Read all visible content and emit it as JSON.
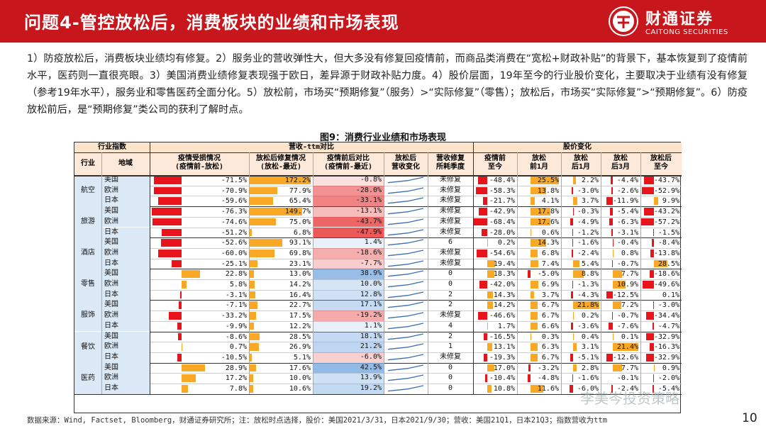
{
  "header": {
    "title": "问题4-管控放松后，消费板块的业绩和市场表现",
    "logo_cn": "财通证券",
    "logo_en": "CAITONG SECURITIES",
    "bg_color": "#c8161d"
  },
  "paragraph": "1）防疫放松后，消费板块业绩均有修复。2）服务业的营收弹性大，但大多没有修复回疫情前，而商品类消费在“宽松+财政补贴”的背景下，基本恢复到了疫情前水平，医药则一直很亮眼。3）美国消费业绩修复表现强于欧日，差异源于财政补贴力度。4）股价层面，19年至今的行业股价变化，主要取决于业绩有没有修复（参考19年水平），服务业和零售医药全面分化。5）放松前，市场买“预期修复”（服务）>“实际修复”（零售）；放松后，市场买“实际修复”>“预期修复”。6）防疫放松前后，是“预期修复”类公司的获利了解时点。",
  "figure_title": "图9：消费行业业绩和市场表现",
  "table": {
    "group_headers": [
      "行业指数",
      "营收-ttm对比",
      "股价变化"
    ],
    "headers": [
      "行业",
      "地域",
      "疫情受损情况\n(疫情前-放松)",
      "放松后修复情况\n(放松-最近)",
      "疫情前后对比\n(疫情前-最近)",
      "放松后\n营收变化",
      "营收修复\n所耗季度",
      "疫情前\n至今",
      "放松\n前1月",
      "放松\n后1月",
      "放松\n后3月",
      "放松后\n至今"
    ],
    "sectors": [
      {
        "name": "航空",
        "rows": [
          {
            "region": "美国",
            "c3": "-71.5%",
            "c4": "172.2%",
            "c5": "-0.8%",
            "trend": "up",
            "c7": "未修复",
            "c8": "-48.4%",
            "c9": "25.5%",
            "c10": "2.2%",
            "c11": "-4.4%",
            "c12": "-43.7%"
          },
          {
            "region": "欧洲",
            "c3": "-70.9%",
            "c4": "77.9%",
            "c5": "-28.0%",
            "trend": "up",
            "c7": "未修复",
            "c8": "-58.3%",
            "c9": "13.8%",
            "c10": "-3.0%",
            "c11": "-2.6%",
            "c12": "-52.9%"
          },
          {
            "region": "日本",
            "c3": "-59.6%",
            "c4": "65.4%",
            "c5": "-33.1%",
            "trend": "up",
            "c7": "未修复",
            "c8": "-21.7%",
            "c9": "4.1%",
            "c10": "3.7%",
            "c11": "-11.9%",
            "c12": "9.9%"
          }
        ]
      },
      {
        "name": "旅游",
        "rows": [
          {
            "region": "美国",
            "c3": "-76.3%",
            "c4": "149.7%",
            "c5": "-13.1%",
            "trend": "up",
            "c7": "未修复",
            "c8": "-42.9%",
            "c9": "17.8%",
            "c10": "-0.3%",
            "c11": "-5.4%",
            "c12": "-43.2%"
          },
          {
            "region": "欧洲",
            "c3": "-74.6%",
            "c4": "75.0%",
            "c5": "-43.7%",
            "trend": "up",
            "c7": "未修复",
            "c8": "-68.4%",
            "c9": "17.6%",
            "c10": "-4.9%",
            "c11": "-6.3%",
            "c12": "-57.2%"
          },
          {
            "region": "日本",
            "c3": "-51.2%",
            "c4": "6.8%",
            "c5": "-47.9%",
            "trend": "up",
            "c7": "未修复",
            "c8": "-28.0%",
            "c9": "0.6%",
            "c10": "-1.2%",
            "c11": "-3.1%",
            "c12": "-1.5%"
          }
        ]
      },
      {
        "name": "酒店",
        "rows": [
          {
            "region": "美国",
            "c3": "-52.6%",
            "c4": "93.1%",
            "c5": "1.4%",
            "trend": "up",
            "c7": "6",
            "c8": "0.2%",
            "c9": "14.3%",
            "c10": "-1.6%",
            "c11": "-0.4%",
            "c12": "-8.4%"
          },
          {
            "region": "欧洲",
            "c3": "-60.0%",
            "c4": "69.8%",
            "c5": "-18.6%",
            "trend": "up",
            "c7": "未修复",
            "c8": "-54.6%",
            "c9": "6.8%",
            "c10": "-2.4%",
            "c11": "0.8%",
            "c12": "-13.8%"
          },
          {
            "region": "日本",
            "c3": "-25.1%",
            "c4": "23.1%",
            "c5": "-7.7%",
            "trend": "up",
            "c7": "未修复",
            "c8": "19.4%",
            "c9": "7.4%",
            "c10": "5.4%",
            "c11": "-0.7%",
            "c12": "28.5%"
          }
        ]
      },
      {
        "name": "零售",
        "rows": [
          {
            "region": "美国",
            "c3": "22.8%",
            "c4": "13.0%",
            "c5": "38.9%",
            "trend": "up",
            "c7": "0",
            "c8": "18.3%",
            "c9": "-5.0%",
            "c10": "8.8%",
            "c11": "7.7%",
            "c12": "-18.6%"
          },
          {
            "region": "欧洲",
            "c3": "5.8%",
            "c4": "14.2%",
            "c5": "10.0%",
            "trend": "up",
            "c7": "0",
            "c8": "-42.0%",
            "c9": "6.9%",
            "c10": "-1.3%",
            "c11": "10.9%",
            "c12": "-49.6%"
          },
          {
            "region": "日本",
            "c3": "-3.1%",
            "c4": "16.4%",
            "c5": "12.8%",
            "trend": "up",
            "c7": "2",
            "c8": "14.3%",
            "c9": "3.7%",
            "c10": "-4.3%",
            "c11": "-12.5%",
            "c12": "0.1%"
          }
        ]
      },
      {
        "name": "服饰",
        "rows": [
          {
            "region": "美国",
            "c3": "-7.1%",
            "c4": "22.7%",
            "c5": "17.1%",
            "trend": "up",
            "c7": "2",
            "c8": "14.2%",
            "c9": "6.7%",
            "c10": "21.8%",
            "c11": "7.2%",
            "c12": "-3.0%"
          },
          {
            "region": "欧洲",
            "c3": "-33.2%",
            "c4": "17.5%",
            "c5": "-19.2%",
            "trend": "up",
            "c7": "未修复",
            "c8": "-46.6%",
            "c9": "6.7%",
            "c10": "0.2%",
            "c11": "-0.7%",
            "c12": "-34.4%"
          },
          {
            "region": "日本",
            "c3": "-9.9%",
            "c4": "12.2%",
            "c5": "1.1%",
            "trend": "up",
            "c7": "4",
            "c8": "1.7%",
            "c9": "6.6%",
            "c10": "-3.6%",
            "c11": "-7.6%",
            "c12": "-4.7%"
          }
        ]
      },
      {
        "name": "餐饮",
        "rows": [
          {
            "region": "美国",
            "c3": "-8.6%",
            "c4": "28.5%",
            "c5": "18.1%",
            "trend": "up",
            "c7": "2",
            "c8": "-16.5%",
            "c9": "0.3%",
            "c10": "0.4%",
            "c11": "0.1%",
            "c12": "-32.9%"
          },
          {
            "region": "欧洲",
            "c3": "0.7%",
            "c4": "26.9%",
            "c5": "21.2%",
            "trend": "up",
            "c7": "1",
            "c8": "13.1%",
            "c9": "6.3%",
            "c10": "3.1%",
            "c11": "21.4%",
            "c12": "-16.3%"
          },
          {
            "region": "日本",
            "c3": "-10.5%",
            "c4": "5.1%",
            "c5": "-6.0%",
            "trend": "up",
            "c7": "未修复",
            "c8": "-19.3%",
            "c9": "6.7%",
            "c10": "-5.1%",
            "c11": "-12.6%",
            "c12": "-32.9%"
          }
        ]
      },
      {
        "name": "医药",
        "rows": [
          {
            "region": "美国",
            "c3": "28.9%",
            "c4": "17.6%",
            "c5": "42.5%",
            "trend": "up",
            "c7": "0",
            "c8": "17.0%",
            "c9": "-3.2%",
            "c10": "2.8%",
            "c11": "7.7%",
            "c12": "0.9%"
          },
          {
            "region": "欧洲",
            "c3": "17.2%",
            "c4": "10.0%",
            "c5": "13.9%",
            "trend": "up",
            "c7": "0",
            "c8": "-10.4%",
            "c9": "-4.8%",
            "c10": "-1.6%",
            "c11": "-0.1%",
            "c12": "-2.0%"
          },
          {
            "region": "日本",
            "c3": "7.8%",
            "c4": "10.6%",
            "c5": "19.2%",
            "trend": "up",
            "c7": "0",
            "c8": "10.8%",
            "c9": "11.6%",
            "c10": "-6.0%",
            "c11": "-2.4%",
            "c12": "-5.4%"
          }
        ]
      }
    ]
  },
  "source": "数据来源：Wind, Factset, Bloomberg，财通证券研究所；注：放松时点选择，股价：美国2021/3/31，日本2021/9/30；营收：美国21Q1，日本21Q3；指数营收为ttm",
  "page_number": "10",
  "watermark": "李美岑投资策略",
  "colors": {
    "red": "#e8141c",
    "orange": "#f9a825",
    "dark_red": "#c00000",
    "gold": "#f8b300",
    "blue_cell": "#bdd7ee",
    "header_bg": "#fbe3cc"
  }
}
